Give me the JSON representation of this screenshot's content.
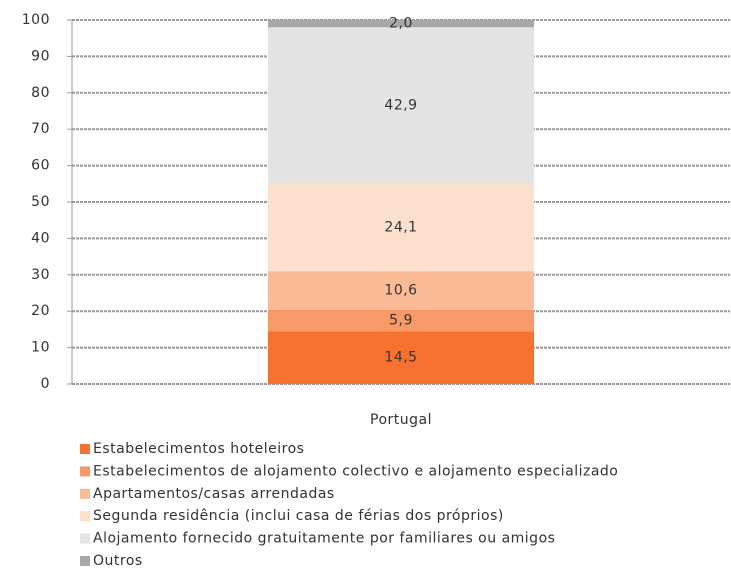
{
  "chart_data": {
    "type": "stacked-bar",
    "categories": [
      "Portugal"
    ],
    "series": [
      {
        "name": "Estabelecimentos hoteleiros",
        "color": "#f7722f",
        "values": [
          14.5
        ],
        "value_labels": [
          "14,5"
        ]
      },
      {
        "name": "Estabelecimentos de alojamento colectivo e alojamento especializado",
        "color": "#f79a68",
        "values": [
          5.9
        ],
        "value_labels": [
          "5,9"
        ]
      },
      {
        "name": "Apartamentos/casas arrendadas",
        "color": "#fbbb96",
        "values": [
          10.6
        ],
        "value_labels": [
          "10,6"
        ]
      },
      {
        "name": "Segunda residência (inclui casa de férias dos próprios)",
        "color": "#fde1cf",
        "values": [
          24.1
        ],
        "value_labels": [
          "24,1"
        ]
      },
      {
        "name": "Alojamento fornecido gratuitamente por familiares ou amigos",
        "color": "#e4e4e4",
        "values": [
          42.9
        ],
        "value_labels": [
          "42,9"
        ]
      },
      {
        "name": "Outros",
        "color": "#a8a8a8",
        "values": [
          2.0
        ],
        "value_labels": [
          "2,0"
        ]
      }
    ],
    "ylim": [
      0,
      100
    ],
    "yticks": [
      0,
      10,
      20,
      30,
      40,
      50,
      60,
      70,
      80,
      90,
      100
    ],
    "grid": true,
    "legend": "bottom"
  }
}
